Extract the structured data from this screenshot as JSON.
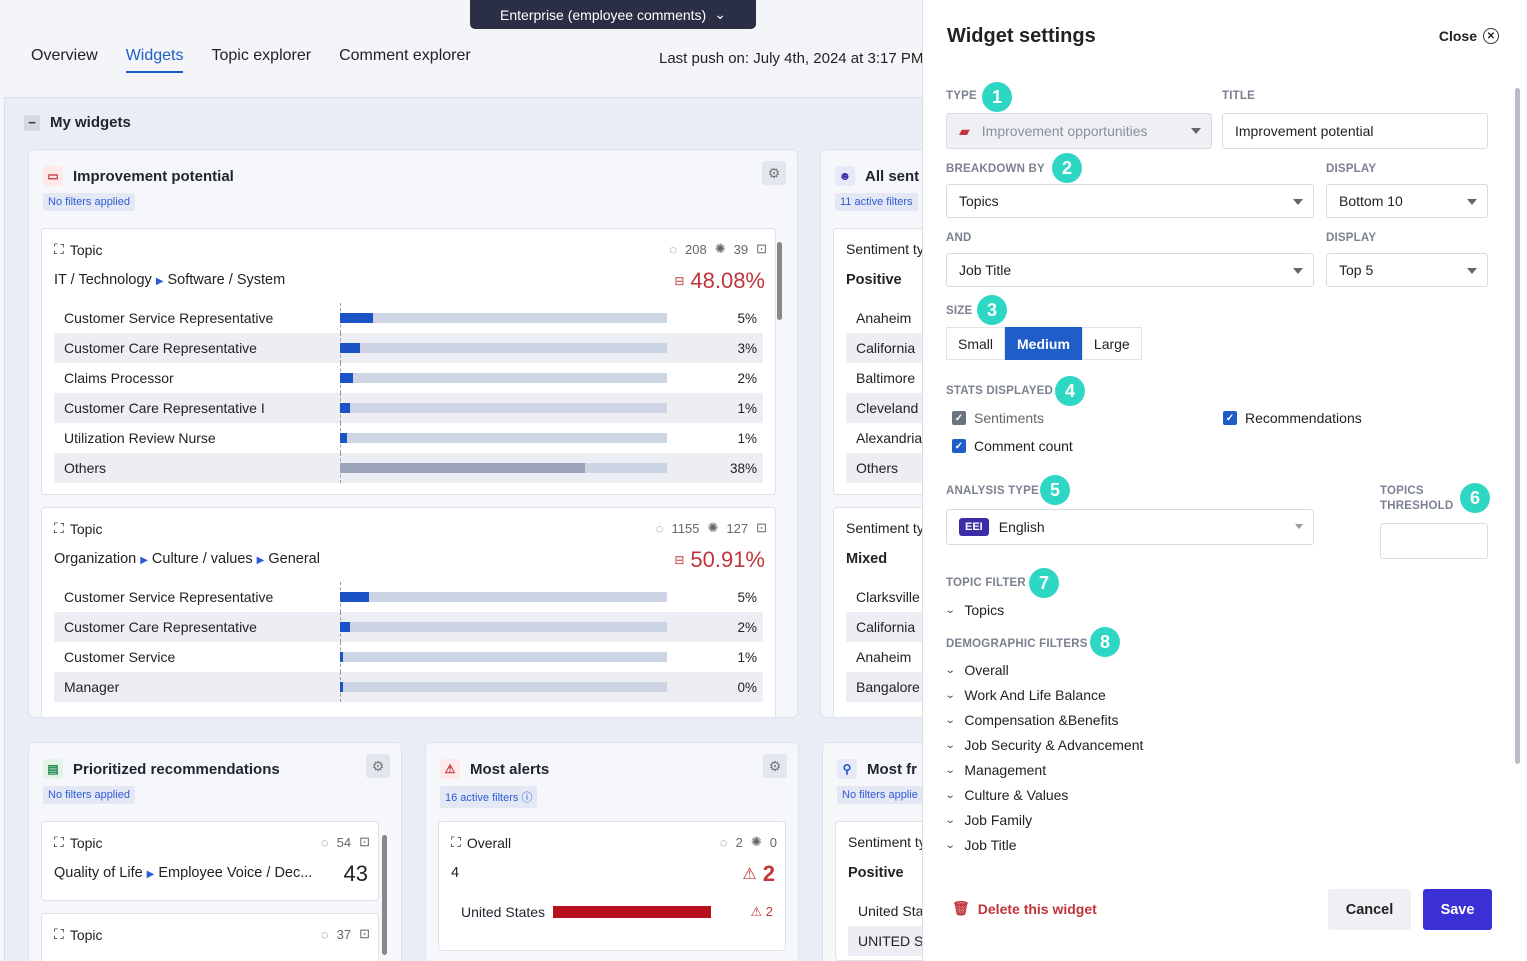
{
  "env_selector": {
    "label": "Enterprise (employee comments)"
  },
  "nav": {
    "tabs": [
      "Overview",
      "Widgets",
      "Topic explorer",
      "Comment explorer"
    ],
    "active": "Widgets"
  },
  "last_push": "Last push on: July 4th, 2024 at 3:17 PM",
  "section": {
    "title": "My widgets"
  },
  "widget1": {
    "title": "Improvement potential",
    "filter_badge": "No filters applied",
    "blocks": [
      {
        "head": "Topic",
        "comments": "208",
        "recs": "39",
        "path": [
          "IT / Technology",
          "Software / System"
        ],
        "percent": "48.08%",
        "rows": [
          {
            "label": "Customer Service Representative",
            "value": "5%",
            "fill": 0.1
          },
          {
            "label": "Customer Care Representative",
            "value": "3%",
            "fill": 0.06
          },
          {
            "label": "Claims Processor",
            "value": "2%",
            "fill": 0.04
          },
          {
            "label": "Customer Care Representative I",
            "value": "1%",
            "fill": 0.03
          },
          {
            "label": "Utilization Review Nurse",
            "value": "1%",
            "fill": 0.02
          },
          {
            "label": "Others",
            "value": "38%",
            "fill": 0.75
          }
        ]
      },
      {
        "head": "Topic",
        "comments": "1155",
        "recs": "127",
        "path": [
          "Organization",
          "Culture / values",
          "General"
        ],
        "percent": "50.91%",
        "rows": [
          {
            "label": "Customer Service Representative",
            "value": "5%",
            "fill": 0.09
          },
          {
            "label": "Customer Care Representative",
            "value": "2%",
            "fill": 0.03
          },
          {
            "label": "Customer Service",
            "value": "1%",
            "fill": 0.01
          },
          {
            "label": "Manager",
            "value": "0%",
            "fill": 0.01
          }
        ]
      }
    ]
  },
  "widget2": {
    "title": "All sent",
    "filter_badge": "11 active filters",
    "block1": {
      "head": "Sentiment ty",
      "label": "Positive",
      "rows": [
        "Anaheim",
        "California",
        "Baltimore",
        "Cleveland",
        "Alexandria",
        "Others"
      ]
    },
    "block2": {
      "head": "Sentiment ty",
      "label": "Mixed",
      "rows": [
        "Clarksville",
        "California",
        "Anaheim",
        "Bangalore"
      ]
    }
  },
  "widget3": {
    "title": "Prioritized recommendations",
    "filter_badge": "No filters applied",
    "block1": {
      "head": "Topic",
      "comments": "54",
      "path": [
        "Quality of Life",
        "Employee Voice / Dec..."
      ],
      "value": "43"
    },
    "block2": {
      "head": "Topic",
      "comments": "37"
    }
  },
  "widget4": {
    "title": "Most alerts",
    "filter_badge": "16 active filters",
    "block1": {
      "head": "Overall",
      "comments": "2",
      "recs": "0",
      "count": "4",
      "alerts": "2",
      "row_label": "United States",
      "row_alerts": "2"
    }
  },
  "widget5": {
    "title": "Most fr",
    "filter_badge": "No filters applie",
    "block1": {
      "head": "Sentiment ty",
      "label": "Positive",
      "rows": [
        "United Sta",
        "UNITED ST"
      ]
    }
  },
  "settings": {
    "title": "Widget settings",
    "close": "Close",
    "type": {
      "label": "TYPE",
      "value": "Improvement opportunities",
      "step": "1"
    },
    "title_field": {
      "label": "TITLE",
      "value": "Improvement potential"
    },
    "breakdown": {
      "label": "BREAKDOWN BY",
      "value": "Topics",
      "step": "2"
    },
    "display1": {
      "label": "DISPLAY",
      "value": "Bottom 10"
    },
    "and": {
      "label": "AND",
      "value": "Job Title"
    },
    "display2": {
      "label": "DISPLAY",
      "value": "Top 5"
    },
    "size": {
      "label": "SIZE",
      "step": "3",
      "options": [
        "Small",
        "Medium",
        "Large"
      ],
      "selected": "Medium"
    },
    "stats": {
      "label": "STATS DISPLAYED",
      "step": "4",
      "sentiments": "Sentiments",
      "recommendations": "Recommendations",
      "comment_count": "Comment count"
    },
    "analysis": {
      "label": "ANALYSIS TYPE",
      "step": "5",
      "tag": "EEI",
      "value": "English"
    },
    "threshold": {
      "label1": "TOPICS",
      "label2": "THRESHOLD",
      "step": "6",
      "value": ""
    },
    "topic_filter": {
      "label": "TOPIC FILTER",
      "step": "7",
      "items": [
        "Topics"
      ]
    },
    "demo_filters": {
      "label": "DEMOGRAPHIC FILTERS",
      "step": "8",
      "items": [
        "Overall",
        "Work And Life Balance",
        "Compensation &Benefits",
        "Job Security & Advancement",
        "Management",
        "Culture & Values",
        "Job Family",
        "Job Title"
      ]
    },
    "delete": "Delete this widget",
    "cancel": "Cancel",
    "save": "Save"
  },
  "colors": {
    "accent": "#1f5ec8",
    "step_badge": "#2ed6c4",
    "danger": "#c0343b",
    "save": "#3b2fd6"
  }
}
